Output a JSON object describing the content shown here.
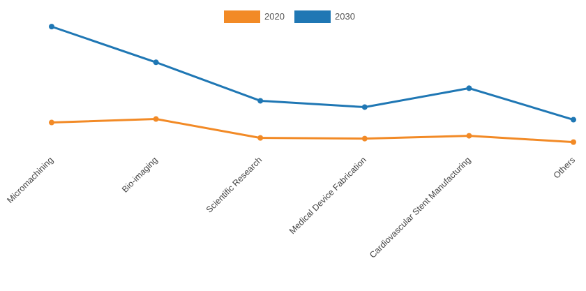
{
  "chart_data": {
    "type": "line",
    "categories": [
      "Micromachining",
      "Bio-imaging",
      "Scientific Research",
      "Medical Device Fabrication",
      "Cardiovascular Stent Manufacturing",
      "Others"
    ],
    "series": [
      {
        "name": "2020",
        "color": "#f28a26",
        "values": [
          14.5,
          15.0,
          12.3,
          12.2,
          12.6,
          11.7
        ]
      },
      {
        "name": "2030",
        "color": "#1f77b4",
        "values": [
          28.2,
          23.1,
          17.6,
          16.7,
          19.4,
          14.9
        ]
      }
    ],
    "ylim": [
      0,
      32
    ],
    "grid": false,
    "legend_position": "top-center",
    "title": "",
    "xlabel": "",
    "ylabel": ""
  }
}
